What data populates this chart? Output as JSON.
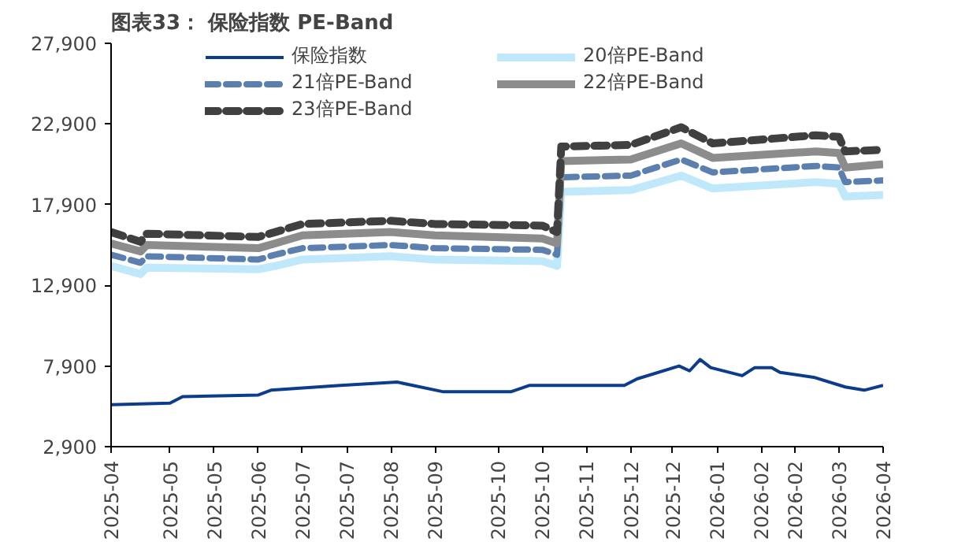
{
  "chart_data": {
    "type": "line",
    "title": "图表33：  保险指数 PE-Band",
    "xlim": [
      "2025-04-08",
      "2026-04-10"
    ],
    "xticks": [
      {
        "value": "2025-04-08",
        "label": "2025-04"
      },
      {
        "value": "2025-05-06",
        "label": "2025-05"
      },
      {
        "value": "2025-05-27",
        "label": "2025-05"
      },
      {
        "value": "2025-06-17",
        "label": "2025-06"
      },
      {
        "value": "2025-07-08",
        "label": "2025-07"
      },
      {
        "value": "2025-07-29",
        "label": "2025-07"
      },
      {
        "value": "2025-08-19",
        "label": "2025-08"
      },
      {
        "value": "2025-09-09",
        "label": "2025-09"
      },
      {
        "value": "2025-10-09",
        "label": "2025-10"
      },
      {
        "value": "2025-10-30",
        "label": "2025-10"
      },
      {
        "value": "2025-11-20",
        "label": "2025-11"
      },
      {
        "value": "2025-12-11",
        "label": "2025-12"
      },
      {
        "value": "2025-12-31",
        "label": "2025-12"
      },
      {
        "value": "2026-01-21",
        "label": "2026-01"
      },
      {
        "value": "2026-02-11",
        "label": "2026-02"
      },
      {
        "value": "2026-02-27",
        "label": "2026-02"
      },
      {
        "value": "2026-03-20",
        "label": "2026-03"
      },
      {
        "value": "2026-04-10",
        "label": "2026-04"
      }
    ],
    "ylim": [
      2900,
      27900
    ],
    "yticks": [
      {
        "value": 2900,
        "label": "2,900"
      },
      {
        "value": 7900,
        "label": "7,900"
      },
      {
        "value": 12900,
        "label": "12,900"
      },
      {
        "value": 17900,
        "label": "17,900"
      },
      {
        "value": 22900,
        "label": "22,900"
      },
      {
        "value": 27900,
        "label": "27,900"
      }
    ],
    "grid": false,
    "legend": "top",
    "marker": "none",
    "series": [
      {
        "name": "保险指数",
        "color": "#0b3d8c",
        "line_style": "solid",
        "x": [
          "2025-04-08",
          "2025-05-06",
          "2025-05-12",
          "2025-06-17",
          "2025-06-23",
          "2025-07-26",
          "2025-08-22",
          "2025-09-13",
          "2025-10-15",
          "2025-10-24",
          "2025-11-14",
          "2025-12-08",
          "2025-12-14",
          "2026-01-03",
          "2026-01-08",
          "2026-01-13",
          "2026-01-18",
          "2026-02-02",
          "2026-02-08",
          "2026-02-16",
          "2026-02-20",
          "2026-03-08",
          "2026-03-23",
          "2026-04-01",
          "2026-04-10"
        ],
        "values": [
          5500,
          5600,
          6000,
          6100,
          6400,
          6700,
          6900,
          6300,
          6300,
          6700,
          6700,
          6700,
          7100,
          7900,
          7600,
          8300,
          7800,
          7300,
          7800,
          7800,
          7500,
          7200,
          6600,
          6400,
          6700
        ]
      },
      {
        "name": "20倍PE-Band",
        "color": "#bfe9fb",
        "line_style": "solid",
        "x": [
          "2025-04-08",
          "2025-04-22",
          "2025-04-25",
          "2025-06-17",
          "2025-06-25",
          "2025-07-08",
          "2025-08-19",
          "2025-09-09",
          "2025-10-30",
          "2025-11-06",
          "2025-11-08",
          "2025-12-11",
          "2026-01-04",
          "2026-01-19",
          "2026-03-09",
          "2026-03-20",
          "2026-03-23",
          "2026-04-10"
        ],
        "values": [
          14100,
          13600,
          14000,
          13900,
          14100,
          14500,
          14700,
          14500,
          14400,
          14100,
          18700,
          18800,
          19700,
          18900,
          19300,
          19200,
          18400,
          18500
        ]
      },
      {
        "name": "21倍PE-Band",
        "color": "#5b7fae",
        "line_style": "dashed",
        "x": [
          "2025-04-08",
          "2025-04-22",
          "2025-04-25",
          "2025-06-17",
          "2025-06-25",
          "2025-07-08",
          "2025-08-19",
          "2025-09-09",
          "2025-10-30",
          "2025-11-06",
          "2025-11-08",
          "2025-12-11",
          "2026-01-04",
          "2026-01-19",
          "2026-03-09",
          "2026-03-20",
          "2026-03-23",
          "2026-04-10"
        ],
        "values": [
          14800,
          14300,
          14700,
          14500,
          14800,
          15200,
          15400,
          15200,
          15100,
          14800,
          19600,
          19700,
          20700,
          19900,
          20300,
          20200,
          19300,
          19400
        ]
      },
      {
        "name": "22倍PE-Band",
        "color": "#8c8c8c",
        "line_style": "solid",
        "x": [
          "2025-04-08",
          "2025-04-22",
          "2025-04-25",
          "2025-06-17",
          "2025-06-25",
          "2025-07-08",
          "2025-08-19",
          "2025-09-09",
          "2025-10-30",
          "2025-11-06",
          "2025-11-08",
          "2025-12-11",
          "2026-01-04",
          "2026-01-19",
          "2026-03-09",
          "2026-03-20",
          "2026-03-23",
          "2026-04-10"
        ],
        "values": [
          15500,
          15000,
          15400,
          15200,
          15500,
          16000,
          16200,
          16000,
          15800,
          15500,
          20600,
          20700,
          21700,
          20800,
          21200,
          21100,
          20200,
          20400
        ]
      },
      {
        "name": "23倍PE-Band",
        "color": "#404040",
        "line_style": "dashed",
        "x": [
          "2025-04-08",
          "2025-04-22",
          "2025-04-25",
          "2025-06-17",
          "2025-06-25",
          "2025-07-08",
          "2025-08-19",
          "2025-09-09",
          "2025-10-30",
          "2025-11-06",
          "2025-11-08",
          "2025-12-11",
          "2026-01-04",
          "2026-01-19",
          "2026-03-09",
          "2026-03-20",
          "2026-03-23",
          "2026-04-10"
        ],
        "values": [
          16200,
          15600,
          16100,
          15900,
          16200,
          16700,
          16900,
          16700,
          16600,
          16200,
          21500,
          21600,
          22700,
          21700,
          22200,
          22100,
          21200,
          21300
        ]
      }
    ]
  }
}
